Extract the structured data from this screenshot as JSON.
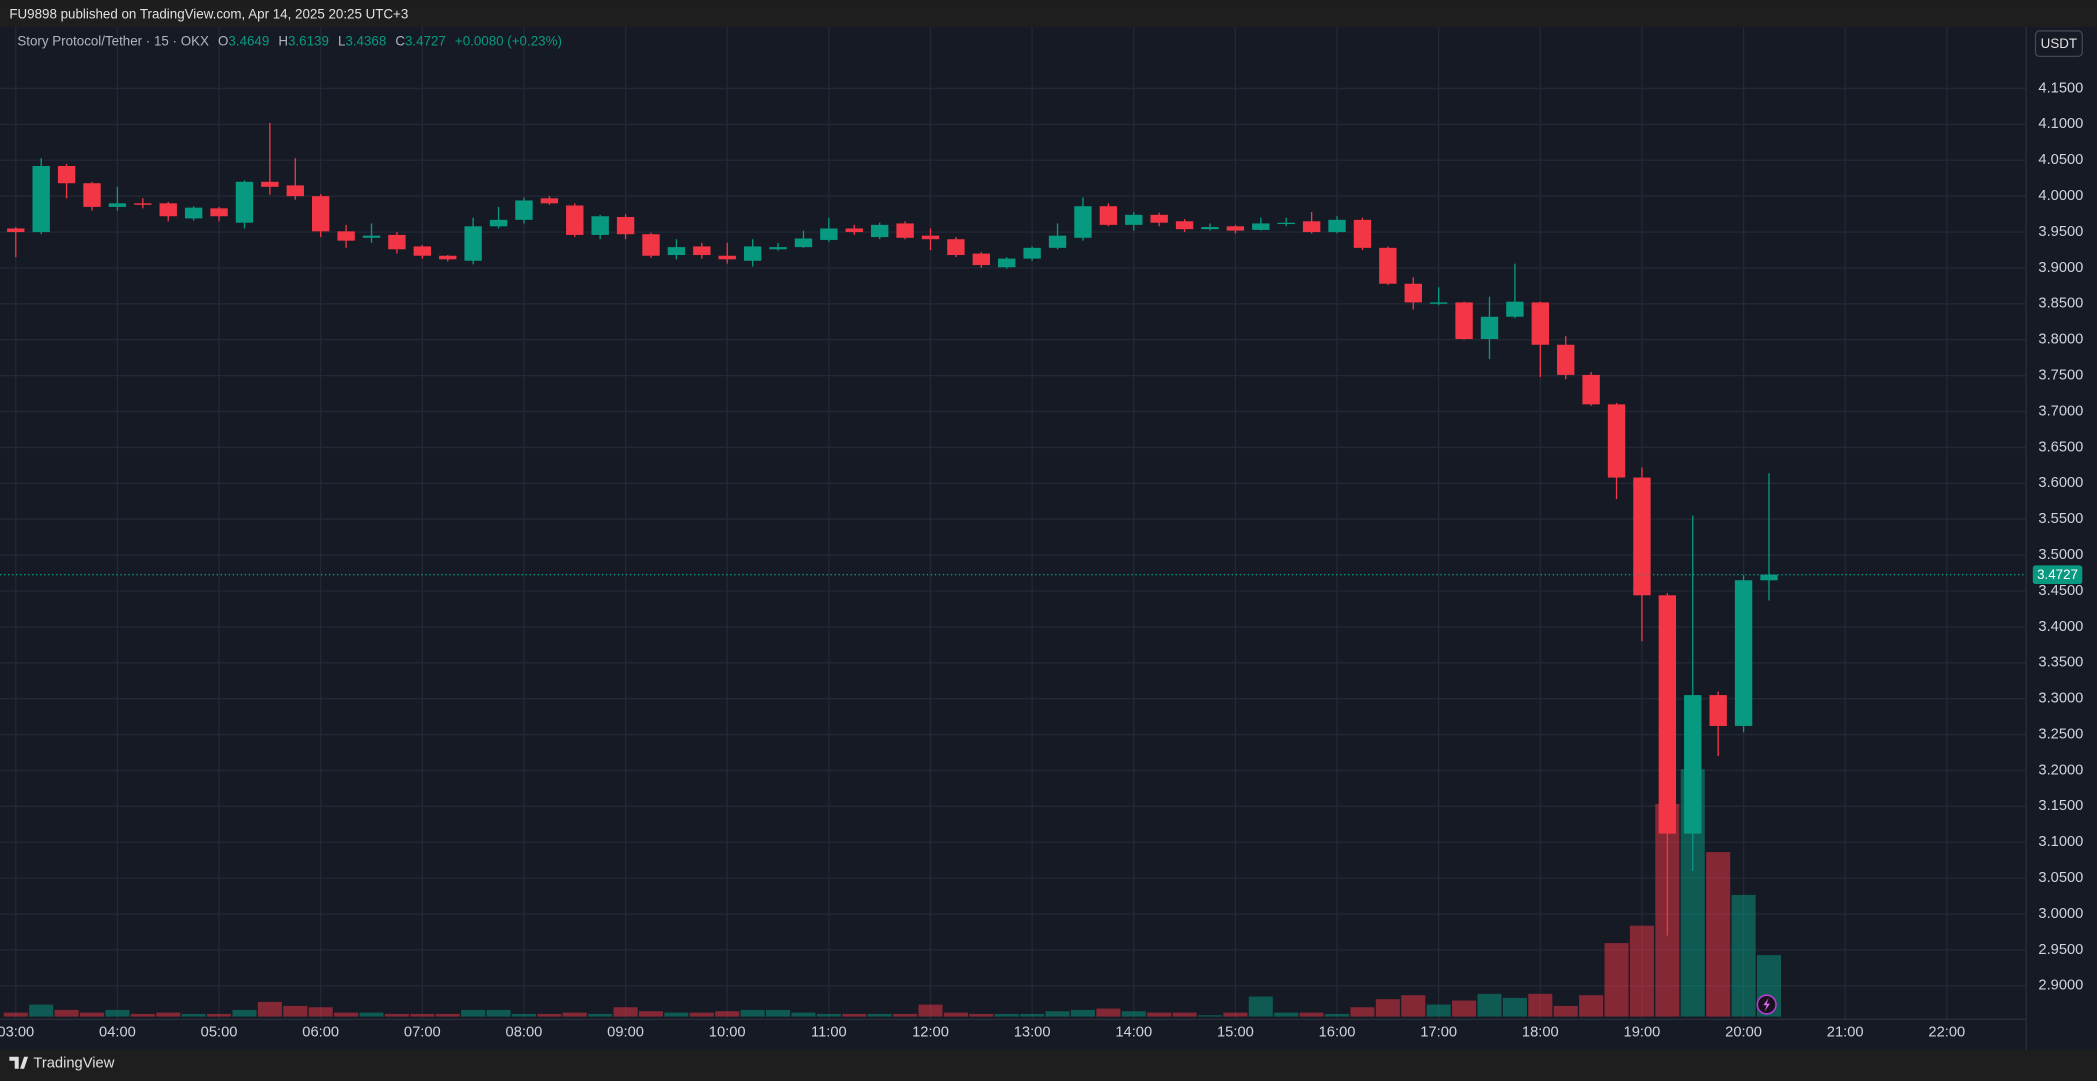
{
  "chart_data": {
    "type": "candlestick",
    "caption": "FU9898 published on TradingView.com, Apr 14, 2025 20:25 UTC+3",
    "title": "Story Protocol/Tether · 15 · OKX",
    "ohlc_labels": [
      "O",
      "H",
      "L",
      "C"
    ],
    "change": "+0.0080 (+0.23%)",
    "currency": "USDT",
    "brand": "TradingView",
    "up_color": "#089981",
    "down_color": "#f23645",
    "grid": true,
    "x": [
      3,
      3.25,
      3.5,
      3.75,
      4,
      4.25,
      4.5,
      4.75,
      5,
      5.25,
      5.5,
      5.75,
      6,
      6.25,
      6.5,
      6.75,
      7,
      7.25,
      7.5,
      7.75,
      8,
      8.25,
      8.5,
      8.75,
      9,
      9.25,
      9.5,
      9.75,
      10,
      10.25,
      10.5,
      10.75,
      11,
      11.25,
      11.5,
      11.75,
      12,
      12.25,
      12.5,
      12.75,
      13,
      13.25,
      13.5,
      13.75,
      14,
      14.25,
      14.5,
      14.75,
      15,
      15.25,
      15.5,
      15.75,
      16,
      16.25,
      16.5,
      16.75,
      17,
      17.25,
      17.5,
      17.75,
      18,
      18.25,
      18.5,
      18.75,
      19,
      19.25,
      19.5,
      19.75,
      20,
      20.25
    ],
    "open": [
      3.955,
      3.95,
      4.042,
      4.018,
      3.985,
      3.99,
      3.99,
      3.969,
      3.983,
      3.963,
      4.02,
      4.015,
      4.0,
      3.951,
      3.942,
      3.946,
      3.93,
      3.917,
      3.91,
      3.958,
      3.967,
      3.997,
      3.987,
      3.946,
      3.971,
      3.947,
      3.918,
      3.93,
      3.917,
      3.91,
      3.926,
      3.929,
      3.939,
      3.955,
      3.943,
      3.962,
      3.945,
      3.94,
      3.92,
      3.901,
      3.913,
      3.928,
      3.942,
      3.986,
      3.96,
      3.974,
      3.965,
      3.954,
      3.958,
      3.953,
      3.962,
      3.965,
      3.95,
      3.967,
      3.928,
      3.878,
      3.85,
      3.852,
      3.801,
      3.832,
      3.852,
      3.793,
      3.751,
      3.71,
      3.608,
      3.444,
      3.112,
      3.305,
      3.262,
      3.4649
    ],
    "high": [
      3.957,
      4.053,
      4.045,
      4.02,
      4.013,
      3.997,
      3.992,
      3.986,
      3.985,
      4.022,
      4.102,
      4.053,
      4.003,
      3.96,
      3.962,
      3.95,
      3.932,
      3.918,
      3.97,
      3.985,
      3.998,
      4.0,
      3.99,
      3.974,
      3.975,
      3.949,
      3.94,
      3.935,
      3.935,
      3.94,
      3.935,
      3.952,
      3.97,
      3.96,
      3.963,
      3.965,
      3.955,
      3.943,
      3.922,
      3.915,
      3.93,
      3.962,
      3.998,
      3.99,
      3.978,
      3.977,
      3.968,
      3.962,
      3.96,
      3.97,
      3.97,
      3.978,
      3.972,
      3.97,
      3.93,
      3.887,
      3.873,
      3.853,
      3.86,
      3.906,
      3.853,
      3.805,
      3.755,
      3.712,
      3.622,
      3.447,
      3.555,
      3.31,
      3.472,
      3.6139
    ],
    "low": [
      3.915,
      3.947,
      3.997,
      3.98,
      3.98,
      3.983,
      3.965,
      3.966,
      3.965,
      3.955,
      4.002,
      3.995,
      3.943,
      3.928,
      3.935,
      3.92,
      3.913,
      3.909,
      3.905,
      3.955,
      3.962,
      3.988,
      3.943,
      3.94,
      3.94,
      3.914,
      3.912,
      3.913,
      3.906,
      3.902,
      3.924,
      3.928,
      3.936,
      3.946,
      3.94,
      3.94,
      3.925,
      3.915,
      3.9,
      3.899,
      3.91,
      3.926,
      3.938,
      3.958,
      3.952,
      3.958,
      3.95,
      3.952,
      3.948,
      3.952,
      3.958,
      3.948,
      3.948,
      3.925,
      3.876,
      3.842,
      3.848,
      3.8,
      3.773,
      3.83,
      3.748,
      3.745,
      3.708,
      3.578,
      3.38,
      2.97,
      3.06,
      3.22,
      3.253,
      3.4368
    ],
    "close": [
      3.95,
      4.042,
      4.018,
      3.985,
      3.99,
      3.988,
      3.972,
      3.984,
      3.972,
      4.02,
      4.013,
      4.0,
      3.951,
      3.938,
      3.945,
      3.926,
      3.917,
      3.912,
      3.958,
      3.967,
      3.994,
      3.99,
      3.946,
      3.972,
      3.947,
      3.917,
      3.929,
      3.918,
      3.912,
      3.93,
      3.929,
      3.941,
      3.955,
      3.95,
      3.96,
      3.942,
      3.94,
      3.918,
      3.904,
      3.913,
      3.928,
      3.945,
      3.986,
      3.96,
      3.974,
      3.963,
      3.954,
      3.957,
      3.952,
      3.962,
      3.963,
      3.95,
      3.967,
      3.928,
      3.878,
      3.852,
      3.852,
      3.801,
      3.832,
      3.853,
      3.793,
      3.751,
      3.71,
      3.608,
      3.444,
      3.112,
      3.305,
      3.262,
      3.465,
      3.4727
    ],
    "volume": [
      3,
      9,
      5,
      3,
      5,
      2,
      3,
      2,
      2,
      5,
      11,
      8,
      7,
      3,
      3,
      2,
      2,
      2,
      5,
      5,
      2,
      2,
      3,
      2,
      7,
      4,
      3,
      3,
      4,
      5,
      5,
      3,
      2,
      2,
      2,
      2,
      9,
      3,
      2,
      2,
      2,
      4,
      5,
      6,
      4,
      3,
      3,
      1,
      3,
      15,
      3,
      3,
      2,
      7,
      13,
      16,
      9,
      12,
      17,
      14,
      17,
      8,
      16,
      55,
      68,
      159,
      185,
      123,
      91,
      46
    ],
    "xlim": [
      2.95,
      22.78
    ],
    "xticks": [
      {
        "value": 3,
        "label": "03:00"
      },
      {
        "value": 4,
        "label": "04:00"
      },
      {
        "value": 5,
        "label": "05:00"
      },
      {
        "value": 6,
        "label": "06:00"
      },
      {
        "value": 7,
        "label": "07:00"
      },
      {
        "value": 8,
        "label": "08:00"
      },
      {
        "value": 9,
        "label": "09:00"
      },
      {
        "value": 10,
        "label": "10:00"
      },
      {
        "value": 11,
        "label": "11:00"
      },
      {
        "value": 12,
        "label": "12:00"
      },
      {
        "value": 13,
        "label": "13:00"
      },
      {
        "value": 14,
        "label": "14:00"
      },
      {
        "value": 15,
        "label": "15:00"
      },
      {
        "value": 16,
        "label": "16:00"
      },
      {
        "value": 17,
        "label": "17:00"
      },
      {
        "value": 18,
        "label": "18:00"
      },
      {
        "value": 19,
        "label": "19:00"
      },
      {
        "value": 20,
        "label": "20:00"
      },
      {
        "value": 21,
        "label": "21:00"
      },
      {
        "value": 22,
        "label": "22:00"
      }
    ],
    "ylim": [
      2.8534,
      4.2357
    ],
    "yticks": [
      {
        "value": 2.9,
        "label": "2.9000"
      },
      {
        "value": 2.95,
        "label": "2.9500"
      },
      {
        "value": 3.0,
        "label": "3.0000"
      },
      {
        "value": 3.05,
        "label": "3.0500"
      },
      {
        "value": 3.1,
        "label": "3.1000"
      },
      {
        "value": 3.15,
        "label": "3.1500"
      },
      {
        "value": 3.2,
        "label": "3.2000"
      },
      {
        "value": 3.25,
        "label": "3.2500"
      },
      {
        "value": 3.3,
        "label": "3.3000"
      },
      {
        "value": 3.35,
        "label": "3.3500"
      },
      {
        "value": 3.4,
        "label": "3.4000"
      },
      {
        "value": 3.45,
        "label": "3.4500"
      },
      {
        "value": 3.5,
        "label": "3.5000"
      },
      {
        "value": 3.55,
        "label": "3.5500"
      },
      {
        "value": 3.6,
        "label": "3.6000"
      },
      {
        "value": 3.65,
        "label": "3.6500"
      },
      {
        "value": 3.7,
        "label": "3.7000"
      },
      {
        "value": 3.75,
        "label": "3.7500"
      },
      {
        "value": 3.8,
        "label": "3.8000"
      },
      {
        "value": 3.85,
        "label": "3.8500"
      },
      {
        "value": 3.9,
        "label": "3.9000"
      },
      {
        "value": 3.95,
        "label": "3.9500"
      },
      {
        "value": 4.0,
        "label": "4.0000"
      },
      {
        "value": 4.05,
        "label": "4.0500"
      },
      {
        "value": 4.1,
        "label": "4.1000"
      },
      {
        "value": 4.15,
        "label": "4.1500"
      }
    ]
  }
}
